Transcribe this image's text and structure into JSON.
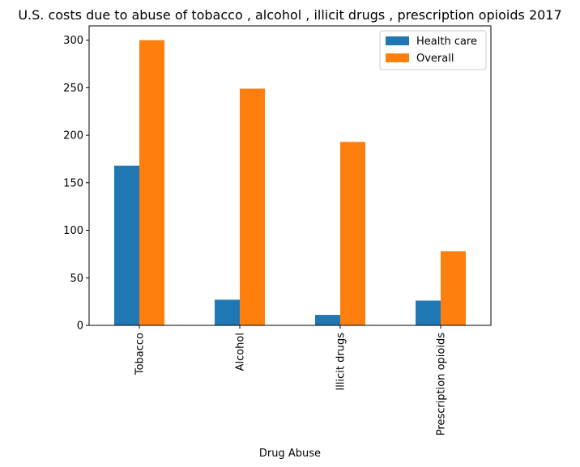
{
  "chart_data": {
    "type": "bar",
    "title": "U.S. costs due to abuse of tobacco , alcohol , illicit drugs , prescription opioids 2017",
    "xlabel": "Drug Abuse",
    "ylabel": "",
    "categories": [
      "Tobacco",
      "Alcohol",
      "Illicit drugs",
      "Prescription opioids"
    ],
    "series": [
      {
        "name": "Health care",
        "values": [
          168,
          27,
          11,
          26
        ],
        "color": "#1f77b4"
      },
      {
        "name": "Overall",
        "values": [
          300,
          249,
          193,
          78
        ],
        "color": "#ff7f0e"
      }
    ],
    "ylim": [
      0,
      315
    ],
    "yticks": [
      0,
      50,
      100,
      150,
      200,
      250,
      300
    ],
    "legend_position": "top-right",
    "grid": false
  }
}
